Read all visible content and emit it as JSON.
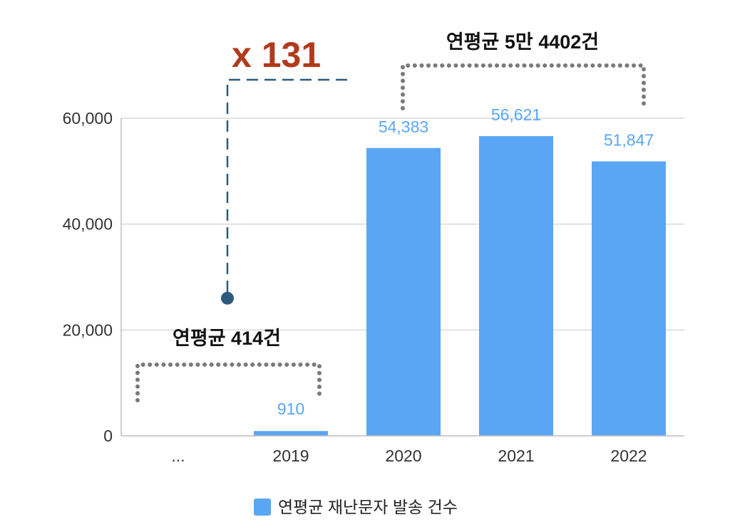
{
  "chart_data": {
    "type": "bar",
    "categories": [
      "...",
      "2019",
      "2020",
      "2021",
      "2022"
    ],
    "values": [
      null,
      910,
      54383,
      56621,
      51847
    ],
    "data_labels": [
      "",
      "910",
      "54,383",
      "56,621",
      "51,847"
    ],
    "ylim": [
      0,
      60000
    ],
    "yticks": [
      0,
      20000,
      40000,
      60000
    ],
    "ytick_labels": [
      "0",
      "20,000",
      "40,000",
      "60,000"
    ],
    "grid": true,
    "series": [
      {
        "name": "연평균 재난문자 발송 건수",
        "values": [
          null,
          910,
          54383,
          56621,
          51847
        ]
      }
    ],
    "legend": {
      "label": "연평균 재난문자 발송 건수",
      "position": "bottom-center"
    },
    "annotations": {
      "before_avg": "연평균 414건",
      "after_avg": "연평균 5만 4402건",
      "multiplier": "x 131",
      "multiplier_marker_value": 26000
    }
  },
  "colors": {
    "bar": "#5aa6f5",
    "data_label": "#5aa6f5",
    "multiplier": "#b23a1c",
    "marker": "#2c5a7e",
    "bracket": "#7a7a7a",
    "grid": "#d9d9d9"
  }
}
